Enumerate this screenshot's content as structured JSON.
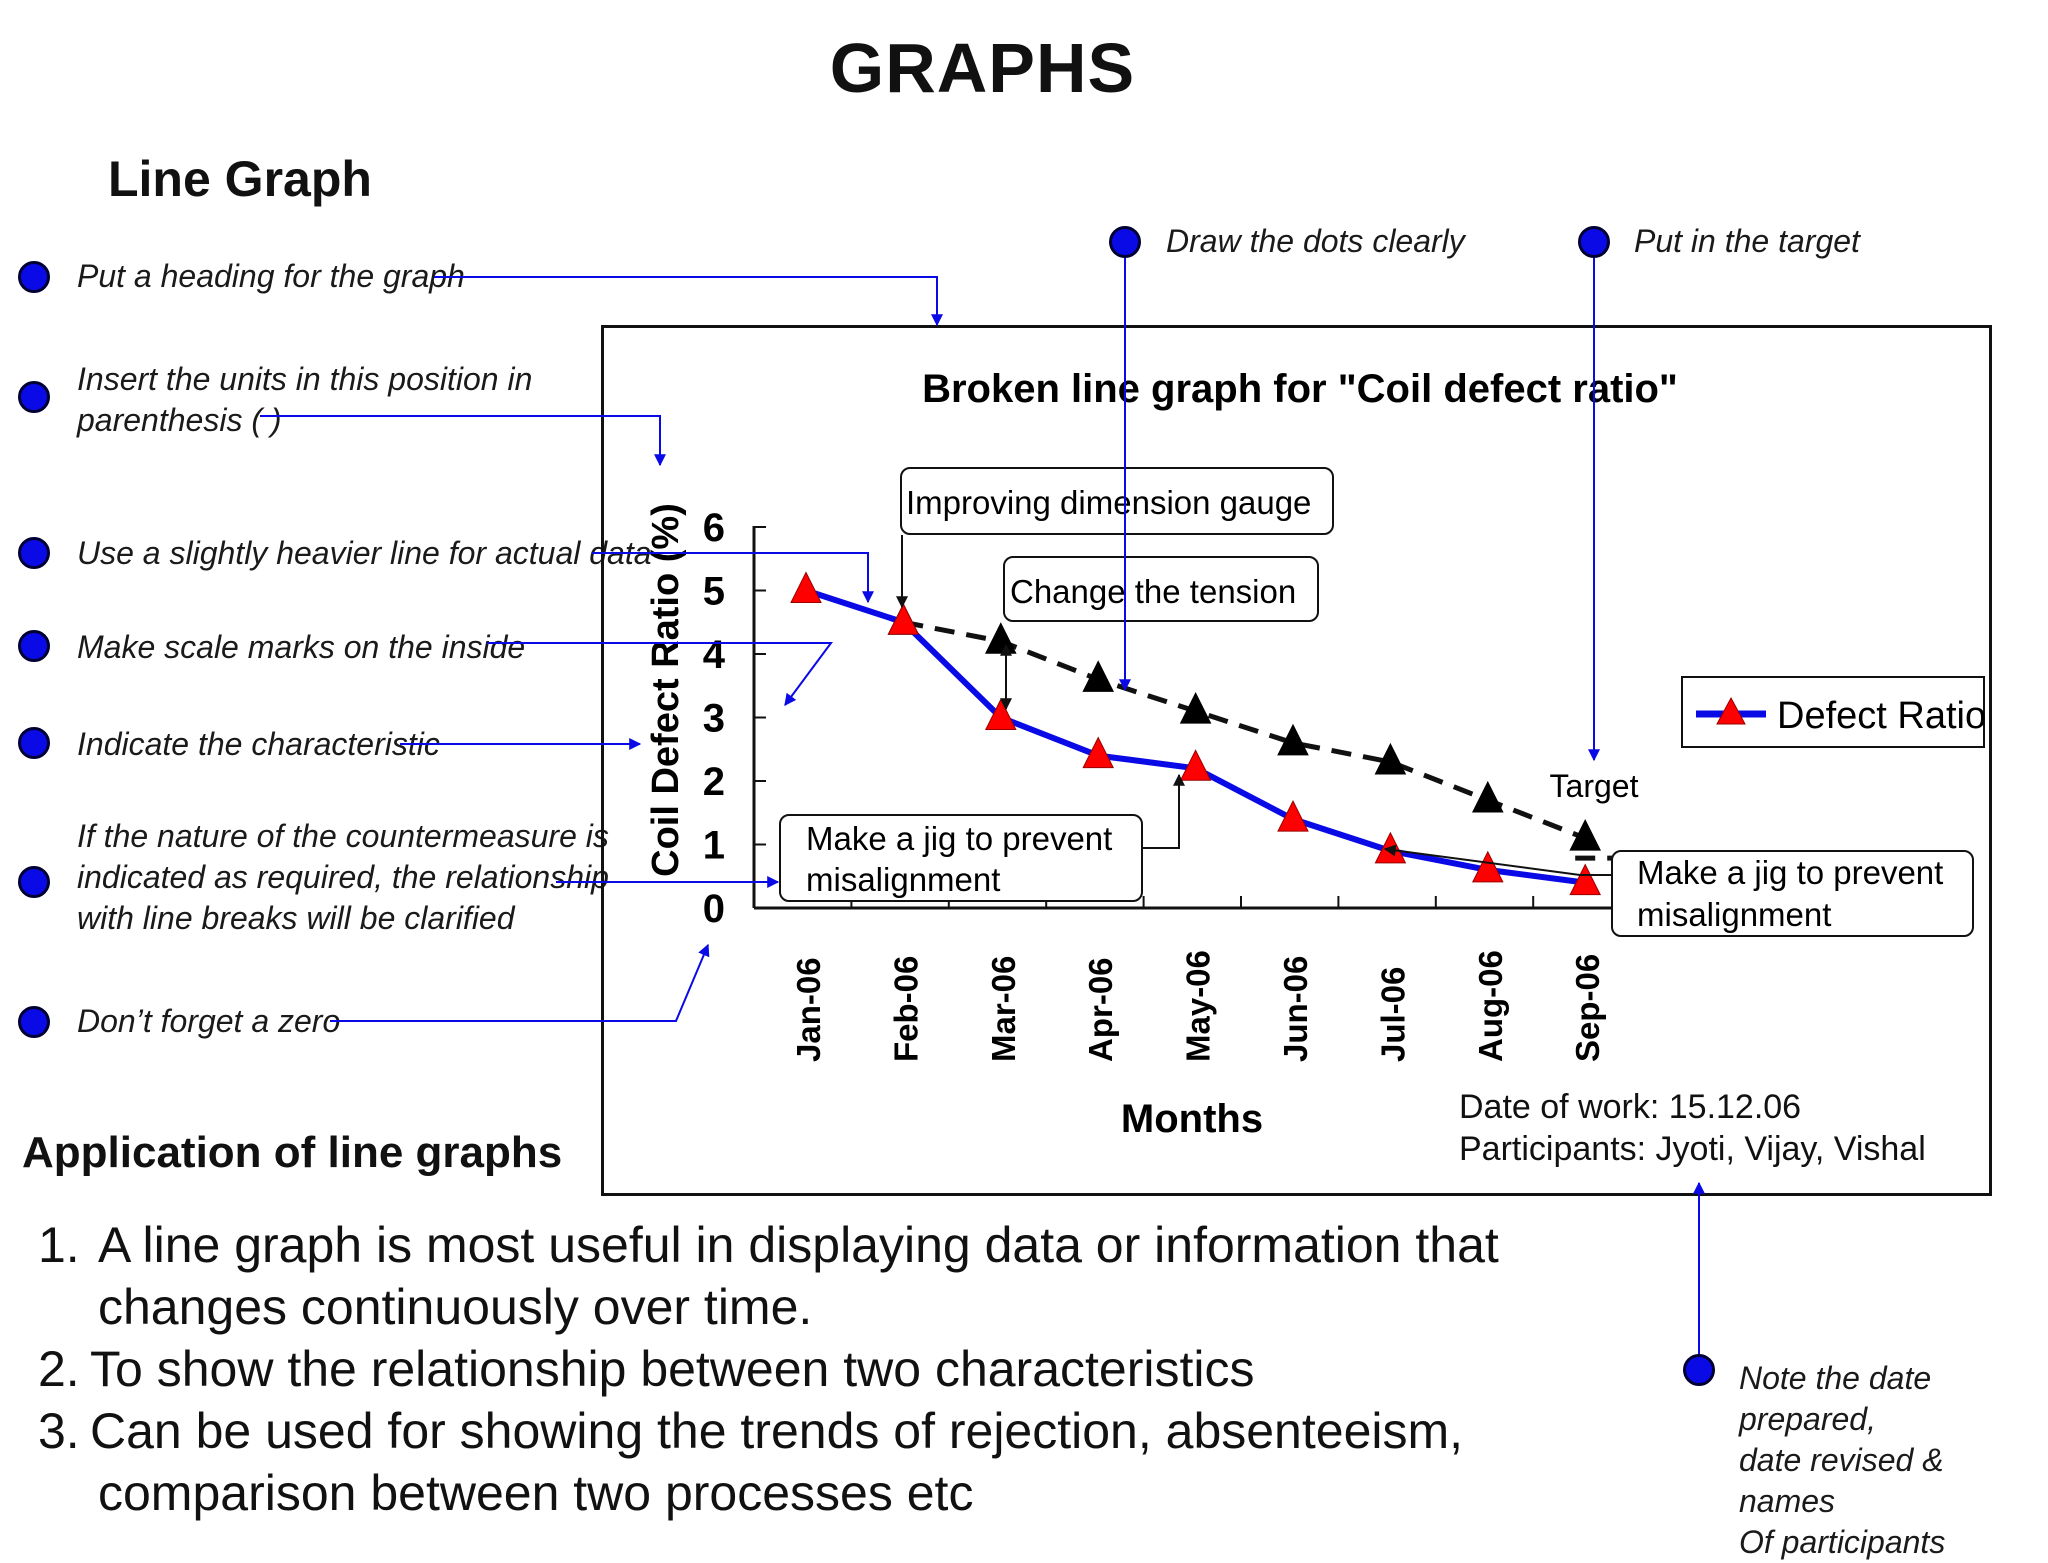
{
  "page": {
    "title": "GRAPHS",
    "section_title": "Line Graph",
    "application_title": "Application of line graphs"
  },
  "notes": {
    "heading": "Put a heading for the graph",
    "units": [
      "Insert the units in this position in",
      "parenthesis ( )"
    ],
    "heavier_line": "Use a slightly heavier line for actual data",
    "scale_marks": "Make scale marks on the inside",
    "characteristic": "Indicate the characteristic",
    "countermeasure": [
      "If the nature of the countermeasure is",
      "indicated as required, the relationship",
      "with line breaks will be clarified"
    ],
    "zero": "Don’t forget a zero",
    "dots": "Draw the dots clearly",
    "target": "Put in the target",
    "date_note": [
      "Note the date prepared,",
      "date revised & names",
      "Of participants"
    ]
  },
  "applications": [
    {
      "num": "1.",
      "text": [
        "A line graph is most useful in displaying data or information that",
        "changes continuously over time."
      ]
    },
    {
      "num": "2.",
      "text": [
        "To show the relationship between two characteristics"
      ]
    },
    {
      "num": "3.",
      "text": [
        "Can be used for showing the trends of rejection, absenteeism,",
        "comparison between two processes etc"
      ]
    }
  ],
  "work_info": {
    "date": "Date of work: 15.12.06",
    "participants": "Participants: Jyoti, Vijay, Vishal"
  },
  "colors": {
    "note_dot": "#0a0ae6",
    "pointer": "#0a0ae6",
    "actual_line": "#0a0ae6",
    "actual_marker": "#ff0000",
    "plan_marker": "#000000"
  },
  "chart_data": {
    "type": "line",
    "title": "Broken line graph for \"Coil defect ratio\"",
    "xlabel": "Months",
    "ylabel": "Coil Defect Ratio (%)",
    "ylim": [
      0,
      6
    ],
    "yticks": [
      "0",
      "1",
      "2",
      "3",
      "4",
      "5",
      "6"
    ],
    "categories": [
      "Jan-06",
      "Feb-06",
      "Mar-06",
      "Apr-06",
      "May-06",
      "Jun-06",
      "Jul-06",
      "Aug-06",
      "Sep-06"
    ],
    "series": [
      {
        "name": "Defect Ratio",
        "style": "solid",
        "values": [
          5.0,
          4.5,
          3.0,
          2.4,
          2.2,
          1.4,
          0.9,
          0.6,
          0.4
        ]
      },
      {
        "style": "dashed",
        "values": [
          null,
          4.5,
          4.2,
          3.6,
          3.1,
          2.6,
          2.3,
          1.7,
          1.1
        ]
      }
    ],
    "target": {
      "label": "Target",
      "value": 1.1
    },
    "legend": {
      "position": "right",
      "label": "Defect Ratio"
    },
    "annotations": [
      {
        "text": "Improving dimension gauge"
      },
      {
        "text": "Change the tension"
      },
      {
        "text": [
          "Make a jig to prevent",
          "misalignment"
        ]
      },
      {
        "text": [
          "Make a jig to prevent",
          "misalignment"
        ]
      }
    ]
  }
}
